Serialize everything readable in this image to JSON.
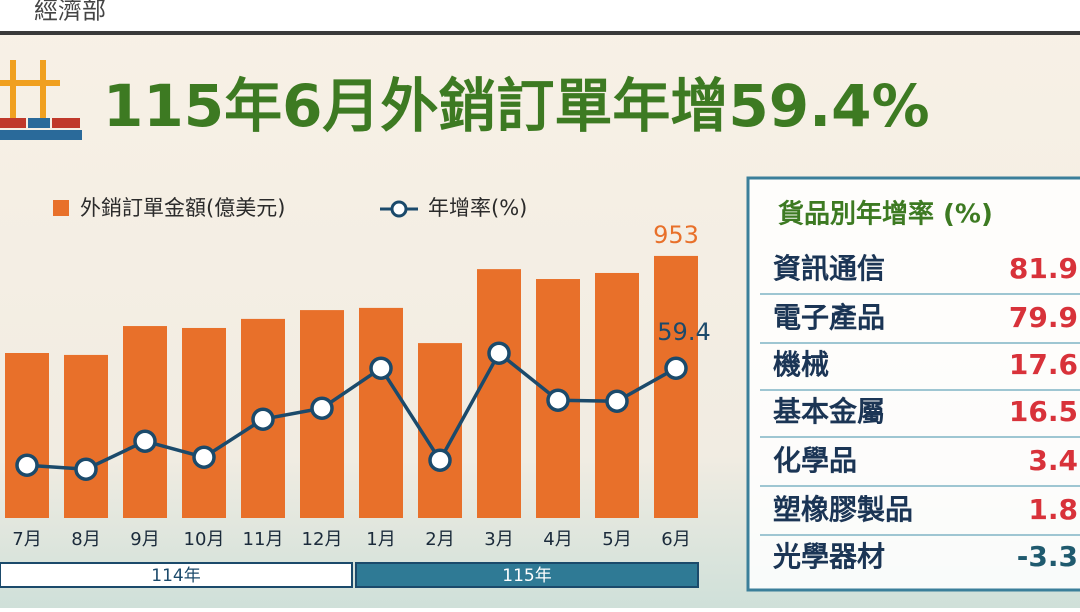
{
  "header": {
    "org": "經濟部"
  },
  "chart_data": {
    "type": "bar-line",
    "title": "115年6月外銷訂單年增59.4%",
    "categories": [
      "7月",
      "8月",
      "9月",
      "10月",
      "11月",
      "12月",
      "1月",
      "2月",
      "3月",
      "4月",
      "5月",
      "6月"
    ],
    "groups": [
      "114年",
      "115年"
    ],
    "series": [
      {
        "name": "外銷訂單金額(億美元)",
        "type": "bar",
        "color": "#e8702a",
        "values": [
          600,
          593,
          698,
          691,
          724,
          756,
          764,
          636,
          905,
          869,
          891,
          953
        ],
        "value_labels": [
          null,
          null,
          null,
          null,
          null,
          null,
          null,
          null,
          null,
          null,
          null,
          "953"
        ]
      },
      {
        "name": "年增率(%)",
        "type": "line",
        "axis": "y2",
        "color": "#1b4a6b",
        "values": [
          10.9,
          8.9,
          22.9,
          14.9,
          33.9,
          39.4,
          59.4,
          13.4,
          66.9,
          43.4,
          42.9,
          59.4
        ],
        "value_labels": [
          null,
          null,
          null,
          null,
          null,
          null,
          null,
          null,
          null,
          null,
          null,
          "59.4"
        ]
      }
    ],
    "ylim": [
      0,
      1000
    ],
    "y2lim": [
      0,
      100
    ]
  },
  "side_table": {
    "title": "貨品別年增率 (%)",
    "rows": [
      [
        "資訊通信",
        81.9
      ],
      [
        "電子產品",
        79.9
      ],
      [
        "機械",
        17.6
      ],
      [
        "基本金屬",
        16.5
      ],
      [
        "化學品",
        3.4
      ],
      [
        "塑橡膠製品",
        1.8
      ],
      [
        "光學器材",
        -3.3
      ]
    ]
  }
}
